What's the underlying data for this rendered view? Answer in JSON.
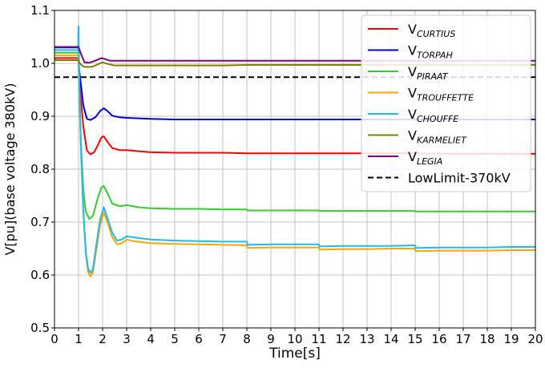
{
  "chart_data": {
    "type": "line",
    "title": "",
    "xlabel": "Time[s]",
    "ylabel": "V[pu](base voltage 380kV)",
    "xlim": [
      0,
      20
    ],
    "ylim": [
      0.5,
      1.1
    ],
    "xticks": [
      "0",
      "1",
      "2",
      "3",
      "4",
      "5",
      "6",
      "7",
      "8",
      "9",
      "10",
      "11",
      "12",
      "13",
      "14",
      "15",
      "16",
      "17",
      "18",
      "19",
      "20"
    ],
    "yticks": [
      "0.5",
      "0.6",
      "0.7",
      "0.8",
      "0.9",
      "1.0",
      "1.1"
    ],
    "grid": true,
    "legend_position": "top-right",
    "series": [
      {
        "name": "CURTIUS",
        "label_main": "V",
        "label_sub": "CURTIUS",
        "color": "#ff0000",
        "points": [
          [
            0,
            1.01
          ],
          [
            1,
            1.01
          ],
          [
            1.02,
            0.97
          ],
          [
            1.1,
            0.93
          ],
          [
            1.2,
            0.88
          ],
          [
            1.35,
            0.835
          ],
          [
            1.5,
            0.828
          ],
          [
            1.65,
            0.832
          ],
          [
            1.8,
            0.845
          ],
          [
            1.95,
            0.86
          ],
          [
            2.05,
            0.862
          ],
          [
            2.2,
            0.852
          ],
          [
            2.4,
            0.84
          ],
          [
            2.7,
            0.836
          ],
          [
            3.0,
            0.836
          ],
          [
            3.5,
            0.834
          ],
          [
            4,
            0.832
          ],
          [
            5,
            0.831
          ],
          [
            6,
            0.831
          ],
          [
            7,
            0.831
          ],
          [
            8,
            0.83
          ],
          [
            9,
            0.83
          ],
          [
            10,
            0.83
          ],
          [
            11,
            0.83
          ],
          [
            12,
            0.83
          ],
          [
            13,
            0.83
          ],
          [
            14,
            0.83
          ],
          [
            15,
            0.83
          ],
          [
            16,
            0.829
          ],
          [
            17,
            0.829
          ],
          [
            18,
            0.829
          ],
          [
            19,
            0.829
          ],
          [
            20,
            0.829
          ]
        ]
      },
      {
        "name": "TORPAH",
        "label_main": "V",
        "label_sub": "TORPAH",
        "color": "#0000dd",
        "points": [
          [
            0,
            1.03
          ],
          [
            1,
            1.03
          ],
          [
            1.02,
            0.99
          ],
          [
            1.1,
            0.96
          ],
          [
            1.2,
            0.92
          ],
          [
            1.35,
            0.895
          ],
          [
            1.5,
            0.893
          ],
          [
            1.7,
            0.898
          ],
          [
            1.9,
            0.91
          ],
          [
            2.05,
            0.915
          ],
          [
            2.2,
            0.91
          ],
          [
            2.4,
            0.901
          ],
          [
            2.7,
            0.898
          ],
          [
            3,
            0.897
          ],
          [
            4,
            0.895
          ],
          [
            5,
            0.894
          ],
          [
            6,
            0.894
          ],
          [
            7,
            0.894
          ],
          [
            8,
            0.894
          ],
          [
            9,
            0.894
          ],
          [
            10,
            0.894
          ],
          [
            11,
            0.894
          ],
          [
            12,
            0.894
          ],
          [
            13,
            0.894
          ],
          [
            14,
            0.894
          ],
          [
            15,
            0.894
          ],
          [
            16,
            0.894
          ],
          [
            17,
            0.894
          ],
          [
            18,
            0.894
          ],
          [
            19,
            0.894
          ],
          [
            20,
            0.894
          ]
        ]
      },
      {
        "name": "PIRAAT",
        "label_main": "V",
        "label_sub": "PIRAAT",
        "color": "#33cc33",
        "points": [
          [
            0,
            1.02
          ],
          [
            1,
            1.02
          ],
          [
            1.02,
            0.95
          ],
          [
            1.1,
            0.85
          ],
          [
            1.2,
            0.76
          ],
          [
            1.3,
            0.72
          ],
          [
            1.45,
            0.706
          ],
          [
            1.6,
            0.712
          ],
          [
            1.8,
            0.745
          ],
          [
            1.95,
            0.765
          ],
          [
            2.05,
            0.768
          ],
          [
            2.2,
            0.755
          ],
          [
            2.4,
            0.735
          ],
          [
            2.7,
            0.73
          ],
          [
            3,
            0.732
          ],
          [
            3.5,
            0.728
          ],
          [
            4,
            0.726
          ],
          [
            5,
            0.725
          ],
          [
            6,
            0.725
          ],
          [
            7,
            0.724
          ],
          [
            8,
            0.724
          ],
          [
            8.02,
            0.722
          ],
          [
            9,
            0.722
          ],
          [
            10,
            0.722
          ],
          [
            11,
            0.722
          ],
          [
            11.02,
            0.721
          ],
          [
            12,
            0.721
          ],
          [
            13,
            0.721
          ],
          [
            14,
            0.721
          ],
          [
            15,
            0.721
          ],
          [
            15.02,
            0.72
          ],
          [
            16,
            0.72
          ],
          [
            17,
            0.72
          ],
          [
            18,
            0.72
          ],
          [
            19,
            0.72
          ],
          [
            20,
            0.72
          ]
        ]
      },
      {
        "name": "TROUFFETTE",
        "label_main": "V",
        "label_sub": "TROUFFETTE",
        "color": "#ffa500",
        "points": [
          [
            0,
            1.015
          ],
          [
            1,
            1.015
          ],
          [
            1.03,
            0.95
          ],
          [
            1.1,
            0.84
          ],
          [
            1.2,
            0.72
          ],
          [
            1.3,
            0.64
          ],
          [
            1.4,
            0.605
          ],
          [
            1.5,
            0.597
          ],
          [
            1.6,
            0.605
          ],
          [
            1.75,
            0.65
          ],
          [
            1.9,
            0.695
          ],
          [
            2.05,
            0.718
          ],
          [
            2.2,
            0.7
          ],
          [
            2.4,
            0.672
          ],
          [
            2.6,
            0.658
          ],
          [
            2.8,
            0.66
          ],
          [
            3,
            0.667
          ],
          [
            3.3,
            0.664
          ],
          [
            4,
            0.66
          ],
          [
            5,
            0.659
          ],
          [
            6,
            0.658
          ],
          [
            7,
            0.657
          ],
          [
            8,
            0.656
          ],
          [
            8.02,
            0.651
          ],
          [
            9,
            0.652
          ],
          [
            10,
            0.652
          ],
          [
            11,
            0.652
          ],
          [
            11.02,
            0.648
          ],
          [
            12,
            0.649
          ],
          [
            13,
            0.649
          ],
          [
            14,
            0.65
          ],
          [
            15,
            0.65
          ],
          [
            15.02,
            0.645
          ],
          [
            16,
            0.646
          ],
          [
            17,
            0.646
          ],
          [
            18,
            0.646
          ],
          [
            19,
            0.647
          ],
          [
            20,
            0.647
          ]
        ]
      },
      {
        "name": "CHOUFFE",
        "label_main": "V",
        "label_sub": "CHOUFFE",
        "color": "#1ebbef",
        "points": [
          [
            0,
            1.025
          ],
          [
            0.98,
            1.025
          ],
          [
            1,
            1.07
          ],
          [
            1.03,
            0.97
          ],
          [
            1.1,
            0.84
          ],
          [
            1.2,
            0.72
          ],
          [
            1.3,
            0.645
          ],
          [
            1.4,
            0.612
          ],
          [
            1.5,
            0.604
          ],
          [
            1.6,
            0.612
          ],
          [
            1.75,
            0.66
          ],
          [
            1.9,
            0.705
          ],
          [
            2.05,
            0.728
          ],
          [
            2.2,
            0.708
          ],
          [
            2.4,
            0.68
          ],
          [
            2.6,
            0.665
          ],
          [
            2.8,
            0.667
          ],
          [
            3,
            0.673
          ],
          [
            3.3,
            0.671
          ],
          [
            4,
            0.667
          ],
          [
            5,
            0.665
          ],
          [
            6,
            0.664
          ],
          [
            7,
            0.663
          ],
          [
            8,
            0.663
          ],
          [
            8.02,
            0.657
          ],
          [
            9,
            0.658
          ],
          [
            10,
            0.658
          ],
          [
            11,
            0.658
          ],
          [
            11.02,
            0.654
          ],
          [
            12,
            0.655
          ],
          [
            13,
            0.655
          ],
          [
            14,
            0.655
          ],
          [
            15,
            0.656
          ],
          [
            15.02,
            0.651
          ],
          [
            16,
            0.652
          ],
          [
            17,
            0.652
          ],
          [
            18,
            0.652
          ],
          [
            19,
            0.653
          ],
          [
            20,
            0.653
          ]
        ]
      },
      {
        "name": "KARMELIET",
        "label_main": "V",
        "label_sub": "KARMELIET",
        "color": "#808000",
        "points": [
          [
            0,
            1.006
          ],
          [
            1,
            1.006
          ],
          [
            1.05,
            1.0
          ],
          [
            1.2,
            0.994
          ],
          [
            1.4,
            0.993
          ],
          [
            1.6,
            0.994
          ],
          [
            1.8,
            0.998
          ],
          [
            2,
            1.002
          ],
          [
            2.2,
            0.999
          ],
          [
            2.5,
            0.996
          ],
          [
            3,
            0.996
          ],
          [
            4,
            0.996
          ],
          [
            5,
            0.996
          ],
          [
            6,
            0.996
          ],
          [
            7,
            0.996
          ],
          [
            8,
            0.997
          ],
          [
            9,
            0.997
          ],
          [
            10,
            0.997
          ],
          [
            11,
            0.997
          ],
          [
            12,
            0.997
          ],
          [
            13,
            0.997
          ],
          [
            14,
            0.997
          ],
          [
            15,
            0.997
          ],
          [
            16,
            0.997
          ],
          [
            17,
            0.997
          ],
          [
            18,
            0.997
          ],
          [
            19,
            0.997
          ],
          [
            20,
            0.997
          ]
        ]
      },
      {
        "name": "LEGIA",
        "label_main": "V",
        "label_sub": "LEGIA",
        "color": "#800080",
        "points": [
          [
            0,
            1.031
          ],
          [
            1,
            1.031
          ],
          [
            1.1,
            1.018
          ],
          [
            1.25,
            1.002
          ],
          [
            1.45,
            1.001
          ],
          [
            1.7,
            1.005
          ],
          [
            1.95,
            1.01
          ],
          [
            2.1,
            1.008
          ],
          [
            2.3,
            1.005
          ],
          [
            3,
            1.005
          ],
          [
            4,
            1.005
          ],
          [
            5,
            1.005
          ],
          [
            6,
            1.005
          ],
          [
            7,
            1.005
          ],
          [
            8,
            1.005
          ],
          [
            9,
            1.005
          ],
          [
            10,
            1.005
          ],
          [
            11,
            1.005
          ],
          [
            12,
            1.005
          ],
          [
            13,
            1.005
          ],
          [
            14,
            1.005
          ],
          [
            15,
            1.005
          ],
          [
            16,
            1.005
          ],
          [
            17,
            1.005
          ],
          [
            18,
            1.005
          ],
          [
            19,
            1.005
          ],
          [
            20,
            1.005
          ]
        ]
      },
      {
        "name": "LowLimit-370kV",
        "label_main": "LowLimit-370kV",
        "label_sub": "",
        "color": "#000000",
        "dashed": true,
        "points": [
          [
            0,
            0.974
          ],
          [
            20,
            0.974
          ]
        ]
      }
    ]
  }
}
